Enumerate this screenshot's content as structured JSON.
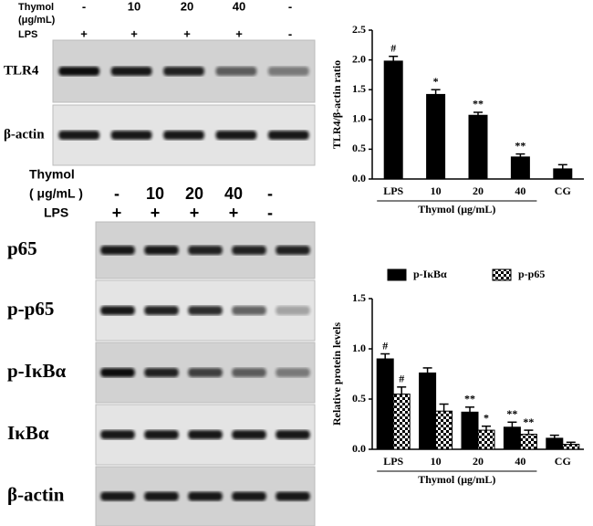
{
  "blots": [
    {
      "header": {
        "thymol_label": "Thymol",
        "unit_label": "(μg/mL)",
        "lps_label": "LPS",
        "thymol": [
          "-",
          "10",
          "20",
          "40",
          "-"
        ],
        "lps": [
          "+",
          "+",
          "+",
          "+",
          "-"
        ]
      },
      "rows": [
        "TLR4",
        "β-actin"
      ]
    },
    {
      "header": {
        "thymol_label": "Thymol",
        "unit_label": "( μg/mL )",
        "lps_label": "LPS",
        "thymol": [
          "-",
          "10",
          "20",
          "40",
          "-"
        ],
        "lps": [
          "+",
          "+",
          "+",
          "+",
          "-"
        ]
      },
      "rows": [
        "p65",
        "p-p65",
        "p-IκBα",
        "IκBα",
        "β-actin"
      ]
    }
  ],
  "chart_data": [
    {
      "type": "bar",
      "ylabel": "TLR4/β-actin ratio",
      "xlabel": "Thymol (μg/mL)",
      "categories": [
        "LPS",
        "10",
        "20",
        "40",
        "CG"
      ],
      "series": [
        {
          "name": null,
          "color": "#000000",
          "values": [
            1.98,
            1.42,
            1.07,
            0.37,
            0.17
          ],
          "errors": [
            0.08,
            0.08,
            0.05,
            0.05,
            0.07
          ],
          "annotations": [
            "#",
            "*",
            "**",
            "**",
            null
          ]
        }
      ],
      "ylim": [
        0,
        2.5
      ],
      "yticks": [
        {
          "value": 0,
          "label": "0.0"
        },
        {
          "value": 0.5,
          "label": "0.5"
        },
        {
          "value": 1,
          "label": "1.0"
        },
        {
          "value": 1.5,
          "label": "1.5"
        },
        {
          "value": 2,
          "label": "2.0"
        },
        {
          "value": 2.5,
          "label": "2.5"
        }
      ]
    },
    {
      "type": "bar",
      "ylabel": "Relative protein levels",
      "xlabel": "Thymol (μg/mL)",
      "categories": [
        "LPS",
        "10",
        "20",
        "40",
        "CG"
      ],
      "series": [
        {
          "name": "p-IκBα",
          "color": "#000000",
          "fill": "solid",
          "values": [
            0.9,
            0.76,
            0.37,
            0.22,
            0.11
          ],
          "errors": [
            0.05,
            0.05,
            0.05,
            0.05,
            0.03
          ],
          "annotations": [
            "#",
            null,
            "**",
            "**",
            null
          ]
        },
        {
          "name": "p-p65",
          "color": "#000000",
          "fill": "checker",
          "values": [
            0.55,
            0.38,
            0.19,
            0.15,
            0.05
          ],
          "errors": [
            0.07,
            0.07,
            0.04,
            0.04,
            0.02
          ],
          "annotations": [
            "#",
            null,
            "*",
            "**",
            null
          ]
        }
      ],
      "ylim": [
        0,
        1.5
      ],
      "yticks": [
        {
          "value": 0,
          "label": "0.0"
        },
        {
          "value": 0.5,
          "label": "0.5"
        },
        {
          "value": 1,
          "label": "1.0"
        },
        {
          "value": 1.5,
          "label": "1.5"
        }
      ],
      "legend": "top"
    }
  ]
}
